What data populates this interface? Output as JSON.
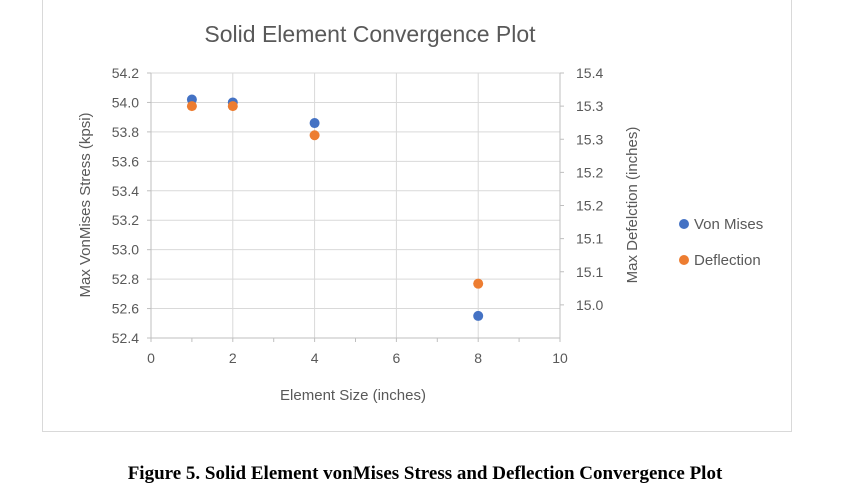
{
  "caption": "Figure 5. Solid Element vonMises Stress and Deflection Convergence Plot",
  "chart_data": {
    "type": "scatter",
    "title": "Solid Element Convergence Plot",
    "xlabel": "Element Size (inches)",
    "ylabel": "Max VonMises Stress (kpsi)",
    "y2label": "Max Defelction (inches)",
    "xlim": [
      0,
      10
    ],
    "ylim": [
      52.4,
      54.2
    ],
    "y2lim": [
      15.0,
      15.4
    ],
    "x_ticks": [
      "0",
      "2",
      "4",
      "6",
      "8",
      "10"
    ],
    "x_tick_values": [
      0,
      2,
      4,
      6,
      8,
      10
    ],
    "y_ticks": [
      "54.2",
      "54.0",
      "53.8",
      "53.6",
      "53.4",
      "53.2",
      "53.0",
      "52.8",
      "52.6",
      "52.4"
    ],
    "y_tick_values": [
      54.2,
      54.0,
      53.8,
      53.6,
      53.4,
      53.2,
      53.0,
      52.8,
      52.6,
      52.4
    ],
    "y2_ticks": [
      "15.4",
      "15.3",
      "15.3",
      "15.2",
      "15.2",
      "15.1",
      "15.1",
      "15.0"
    ],
    "y2_tick_values": [
      15.4,
      15.35,
      15.3,
      15.25,
      15.2,
      15.15,
      15.1,
      15.05
    ],
    "grid": true,
    "legend_position": "right",
    "series": [
      {
        "name": "Von Mises",
        "axis": "left",
        "color": "#4472C4",
        "x": [
          1,
          2,
          4,
          8
        ],
        "y": [
          54.02,
          54.0,
          53.86,
          52.55
        ]
      },
      {
        "name": "Deflection",
        "axis": "right",
        "color": "#ED7D31",
        "x": [
          1,
          2,
          4,
          8
        ],
        "y": [
          15.35,
          15.35,
          15.306,
          15.082
        ]
      }
    ]
  }
}
